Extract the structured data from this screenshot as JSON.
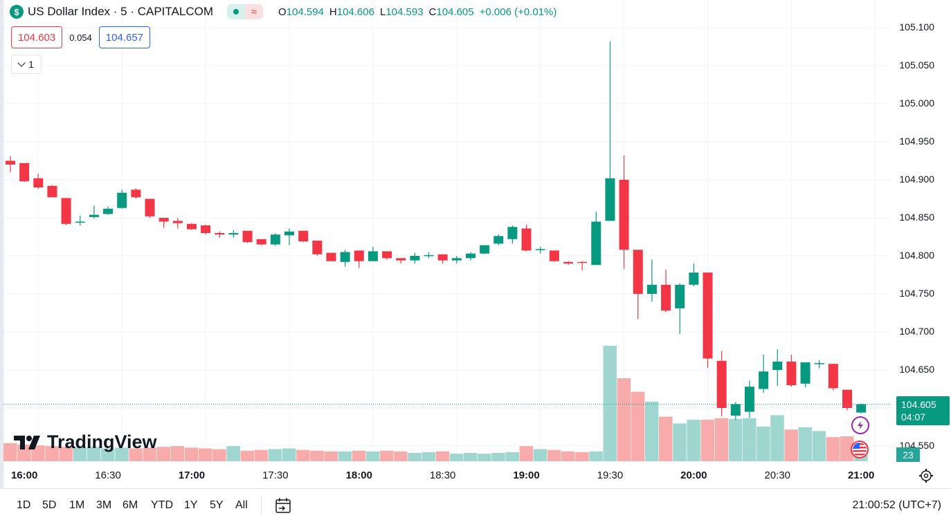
{
  "header": {
    "title": "US Dollar Index · 5 · CAPITALCOM",
    "symbol_icon": "$",
    "status_icons": [
      "market-open-dot-icon",
      "approx-icon"
    ],
    "ohlc": {
      "o_label": "O",
      "o": "104.594",
      "h_label": "H",
      "h": "104.606",
      "l_label": "L",
      "l": "104.593",
      "c_label": "C",
      "c": "104.605",
      "change": "+0.006 (+0.01%)"
    }
  },
  "trade": {
    "bid": "104.603",
    "spread": "0.054",
    "ask": "104.657"
  },
  "indicators_toggle": {
    "count": "1"
  },
  "price_axis": {
    "ticks": [
      "105.100",
      "105.050",
      "105.000",
      "104.950",
      "104.900",
      "104.850",
      "104.800",
      "104.750",
      "104.700",
      "104.650",
      "104.600",
      "104.550"
    ],
    "current_price": "104.605",
    "countdown": "04:07",
    "volume_value": "23"
  },
  "time_axis": {
    "ticks": [
      {
        "label": "16:00",
        "bold": true
      },
      {
        "label": "16:30",
        "bold": false
      },
      {
        "label": "17:00",
        "bold": true
      },
      {
        "label": "17:30",
        "bold": false
      },
      {
        "label": "18:00",
        "bold": true
      },
      {
        "label": "18:30",
        "bold": false
      },
      {
        "label": "19:00",
        "bold": true
      },
      {
        "label": "19:30",
        "bold": false
      },
      {
        "label": "20:00",
        "bold": true
      },
      {
        "label": "20:30",
        "bold": false
      },
      {
        "label": "21:00",
        "bold": true
      }
    ]
  },
  "branding": {
    "name": "TradingView"
  },
  "bottom_toolbar": {
    "ranges": [
      "1D",
      "5D",
      "1M",
      "3M",
      "6M",
      "YTD",
      "1Y",
      "5Y",
      "All"
    ],
    "time": "21:00:52 (UTC+7)"
  },
  "colors": {
    "up": "#089981",
    "down": "#f23645",
    "vol_up": "#9fd6cf",
    "vol_down": "#f7abab",
    "grid": "#f0f3fa"
  },
  "chart_data": {
    "type": "candlestick",
    "interval": "5",
    "start_time": "15:50",
    "y_range": [
      104.528,
      105.11
    ],
    "columns": [
      "open",
      "high",
      "low",
      "close",
      "volume"
    ],
    "candles": [
      [
        104.925,
        104.931,
        104.91,
        104.92,
        24
      ],
      [
        104.922,
        104.922,
        104.897,
        104.898,
        22
      ],
      [
        104.902,
        104.908,
        104.888,
        104.89,
        21
      ],
      [
        104.892,
        104.893,
        104.877,
        104.877,
        20
      ],
      [
        104.876,
        104.876,
        104.84,
        104.842,
        19
      ],
      [
        104.845,
        104.853,
        104.84,
        104.845,
        18
      ],
      [
        104.851,
        104.866,
        104.849,
        104.854,
        19
      ],
      [
        104.855,
        104.865,
        104.854,
        104.862,
        17
      ],
      [
        104.863,
        104.887,
        104.862,
        104.883,
        18
      ],
      [
        104.887,
        104.889,
        104.875,
        104.877,
        17
      ],
      [
        104.875,
        104.875,
        104.85,
        104.852,
        18
      ],
      [
        104.85,
        104.85,
        104.837,
        104.845,
        19
      ],
      [
        104.846,
        104.85,
        104.836,
        104.843,
        20
      ],
      [
        104.842,
        104.843,
        104.834,
        104.835,
        18
      ],
      [
        104.84,
        104.841,
        104.828,
        104.83,
        17
      ],
      [
        104.83,
        104.832,
        104.824,
        104.828,
        16
      ],
      [
        104.828,
        104.834,
        104.824,
        104.83,
        20
      ],
      [
        104.833,
        104.833,
        104.817,
        104.818,
        14
      ],
      [
        104.822,
        104.822,
        104.814,
        104.815,
        15
      ],
      [
        104.815,
        104.83,
        104.813,
        104.828,
        16
      ],
      [
        104.827,
        104.836,
        104.814,
        104.832,
        17
      ],
      [
        104.833,
        104.833,
        104.818,
        104.819,
        15
      ],
      [
        104.82,
        104.82,
        104.8,
        104.802,
        14
      ],
      [
        104.804,
        104.804,
        104.793,
        104.793,
        13
      ],
      [
        104.792,
        104.808,
        104.786,
        104.805,
        13
      ],
      [
        104.807,
        104.807,
        104.784,
        104.793,
        14
      ],
      [
        104.793,
        104.812,
        104.793,
        104.806,
        13
      ],
      [
        104.806,
        104.806,
        104.795,
        104.797,
        14
      ],
      [
        104.797,
        104.797,
        104.79,
        104.794,
        13
      ],
      [
        104.794,
        104.804,
        104.79,
        104.8,
        11
      ],
      [
        104.8,
        104.805,
        104.797,
        104.801,
        12
      ],
      [
        104.802,
        104.802,
        104.79,
        104.794,
        13
      ],
      [
        104.794,
        104.8,
        104.79,
        104.797,
        10
      ],
      [
        104.797,
        104.805,
        104.794,
        104.803,
        11
      ],
      [
        104.803,
        104.814,
        104.802,
        104.814,
        10
      ],
      [
        104.816,
        104.828,
        104.814,
        104.826,
        11
      ],
      [
        104.822,
        104.84,
        104.816,
        104.838,
        12
      ],
      [
        104.836,
        104.841,
        104.806,
        104.807,
        20
      ],
      [
        104.808,
        104.812,
        104.803,
        104.809,
        16
      ],
      [
        104.807,
        104.807,
        104.792,
        104.793,
        15
      ],
      [
        104.792,
        104.793,
        104.788,
        104.79,
        13
      ],
      [
        104.792,
        104.793,
        104.781,
        104.791,
        12
      ],
      [
        104.788,
        104.858,
        104.788,
        104.845,
        13
      ],
      [
        104.846,
        105.082,
        104.846,
        104.902,
        153
      ],
      [
        104.9,
        104.932,
        104.783,
        104.808,
        110
      ],
      [
        104.808,
        104.808,
        104.717,
        104.75,
        92
      ],
      [
        104.75,
        104.795,
        104.74,
        104.762,
        79
      ],
      [
        104.762,
        104.782,
        104.726,
        104.728,
        59
      ],
      [
        104.731,
        104.764,
        104.697,
        104.762,
        50
      ],
      [
        104.762,
        104.79,
        104.76,
        104.778,
        55
      ],
      [
        104.778,
        104.778,
        104.653,
        104.665,
        55
      ],
      [
        104.662,
        104.675,
        104.589,
        104.6,
        57
      ],
      [
        104.59,
        104.608,
        104.584,
        104.605,
        56
      ],
      [
        104.595,
        104.636,
        104.587,
        104.628,
        57
      ],
      [
        104.625,
        104.67,
        104.62,
        104.648,
        46
      ],
      [
        104.65,
        104.677,
        104.629,
        104.661,
        61
      ],
      [
        104.661,
        104.67,
        104.628,
        104.63,
        42
      ],
      [
        104.632,
        104.66,
        104.627,
        104.66,
        45
      ],
      [
        104.659,
        104.663,
        104.652,
        104.659,
        40
      ],
      [
        104.658,
        104.658,
        104.623,
        104.626,
        32
      ],
      [
        104.624,
        104.624,
        104.597,
        104.6,
        33
      ],
      [
        104.594,
        104.606,
        104.593,
        104.605,
        23
      ]
    ]
  }
}
